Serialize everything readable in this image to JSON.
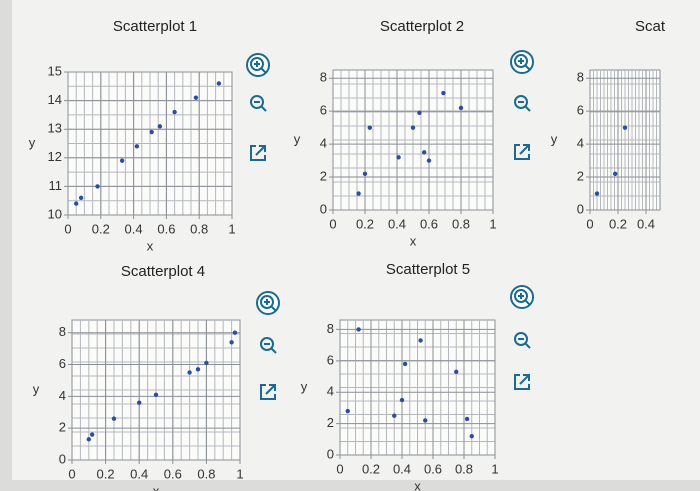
{
  "chart_data": [
    {
      "type": "scatter",
      "title": "Scatterplot 1",
      "x_label": "x",
      "y_label": "y",
      "color": "#2b4f9e",
      "x": [
        0.05,
        0.08,
        0.18,
        0.33,
        0.42,
        0.51,
        0.56,
        0.65,
        0.78,
        0.92
      ],
      "values": [
        10.4,
        10.6,
        11,
        11.9,
        12.4,
        12.9,
        13.1,
        13.6,
        14.1,
        14.6
      ],
      "xlim": [
        0,
        1
      ],
      "xticks": [
        0,
        0.2,
        0.4,
        0.6,
        0.8,
        1
      ],
      "ylim": [
        10,
        15
      ],
      "yticks": [
        10,
        11,
        12,
        13,
        14,
        15
      ],
      "grid": true
    },
    {
      "type": "scatter",
      "title": "Scatterplot 2",
      "x_label": "x",
      "y_label": "y",
      "color": "#2b4f9e",
      "x": [
        0.16,
        0.2,
        0.23,
        0.41,
        0.5,
        0.54,
        0.57,
        0.6,
        0.69,
        0.8
      ],
      "values": [
        1,
        2.2,
        5,
        3.2,
        5,
        5.9,
        3.5,
        3,
        7.1,
        6.2
      ],
      "xlim": [
        0,
        1
      ],
      "xticks": [
        0,
        0.2,
        0.4,
        0.6,
        0.8,
        1
      ],
      "ylim": [
        0,
        8.5
      ],
      "yticks": [
        0,
        2,
        4,
        6,
        8
      ],
      "grid": true
    },
    {
      "type": "scatter",
      "title": "Scat",
      "y_label": "y",
      "color": "#2b4f9e",
      "x": [
        0.05,
        0.18,
        0.25
      ],
      "values": [
        1,
        2.2,
        5
      ],
      "xlim": [
        0,
        0.5
      ],
      "xticks": [
        0,
        0.2,
        0.4
      ],
      "ylim": [
        0,
        8.5
      ],
      "yticks": [
        0,
        2,
        4,
        6,
        8
      ],
      "grid": true
    },
    {
      "type": "scatter",
      "title": "Scatterplot 4",
      "x_label": "x",
      "y_label": "y",
      "color": "#2b4f9e",
      "x": [
        0.1,
        0.12,
        0.25,
        0.4,
        0.5,
        0.7,
        0.75,
        0.8,
        0.95,
        0.97
      ],
      "values": [
        1.3,
        1.6,
        2.6,
        3.6,
        4.1,
        5.5,
        5.7,
        6.1,
        7.4,
        8
      ],
      "xlim": [
        0,
        1
      ],
      "xticks": [
        0,
        0.2,
        0.4,
        0.6,
        0.8,
        1
      ],
      "ylim": [
        0,
        8.8
      ],
      "yticks": [
        0,
        2,
        4,
        6,
        8
      ],
      "grid": true
    },
    {
      "type": "scatter",
      "title": "Scatterplot 5",
      "x_label": "x",
      "y_label": "y",
      "color": "#2b4f9e",
      "x": [
        0.05,
        0.12,
        0.35,
        0.4,
        0.42,
        0.52,
        0.55,
        0.75,
        0.82,
        0.85
      ],
      "values": [
        2.8,
        8,
        2.5,
        3.5,
        5.8,
        7.3,
        2.2,
        5.3,
        2.3,
        1.2
      ],
      "xlim": [
        0,
        1
      ],
      "xticks": [
        0,
        0.2,
        0.4,
        0.6,
        0.8,
        1
      ],
      "ylim": [
        0,
        8.6
      ],
      "yticks": [
        0,
        2,
        4,
        6,
        8
      ],
      "grid": true
    }
  ]
}
